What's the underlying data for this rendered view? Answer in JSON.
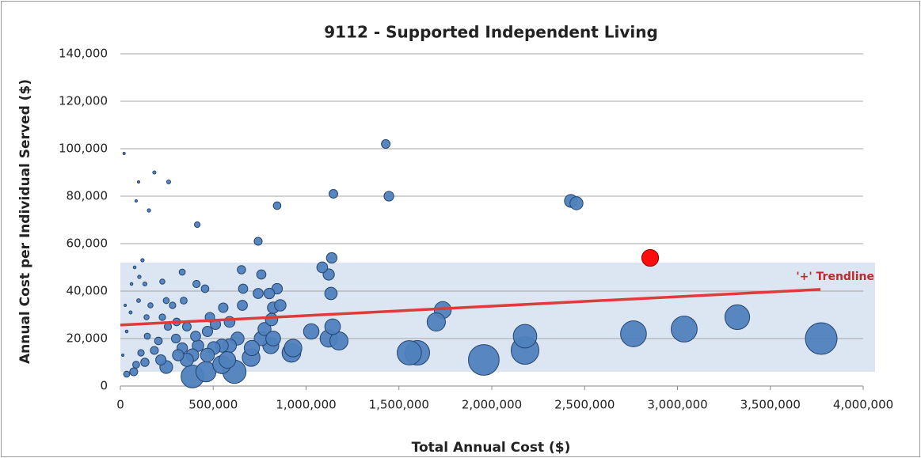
{
  "chart_data": {
    "type": "bubble",
    "title": "9112 - Supported Independent Living",
    "x_label": "Total Annual Cost ($)",
    "y_label": "Annual Cost per Individual Served ($)",
    "xlim": [
      0,
      4000000
    ],
    "ylim": [
      0,
      140000
    ],
    "xticks": [
      0,
      {
        "value": 500000,
        "label": "500,000"
      },
      {
        "value": 1000000,
        "label": "1,000,000"
      },
      {
        "value": 1500000,
        "label": "1,500,000"
      },
      {
        "value": 2000000,
        "label": "2,000,000"
      },
      {
        "value": 2500000,
        "label": "2,500,000"
      },
      {
        "value": 3000000,
        "label": "3,000,000"
      },
      {
        "value": 3500000,
        "label": "3,500,000"
      },
      {
        "value": 4000000,
        "label": "4,000,000"
      }
    ],
    "yticks": [
      0,
      {
        "value": 20000,
        "label": "20,000"
      },
      {
        "value": 40000,
        "label": "40,000"
      },
      {
        "value": 60000,
        "label": "60,000"
      },
      {
        "value": 80000,
        "label": "80,000"
      },
      {
        "value": 100000,
        "label": "100,000"
      },
      {
        "value": 120000,
        "label": "120,000"
      },
      {
        "value": 140000,
        "label": "140,000"
      }
    ],
    "grid": true,
    "band": [
      6000,
      52000
    ],
    "band_color": "#dce6f2",
    "trendline": {
      "label": "'+' Trendline",
      "x": [
        0,
        3770000
      ],
      "y": [
        25700,
        40700
      ],
      "color": "#e03a3a"
    },
    "series": [
      {
        "color": "#4f81bd",
        "x": [
          3774000,
          3322000,
          3036000,
          2763000,
          2179000,
          2179000,
          1957000,
          1599000,
          1556000,
          1736000,
          1701000,
          1122000,
          1177000,
          1143000,
          1134000,
          1122000,
          1138000,
          1087000,
          1028000,
          921000,
          930000,
          810000,
          614000,
          388000,
          461000,
          704000,
          546000,
          759000,
          776000,
          823000,
          814000,
          823000,
          861000,
          844000,
          802000,
          742000,
          759000,
          652000,
          661000,
          657000,
          631000,
          588000,
          546000,
          503000,
          469000,
          512000,
          554000,
          588000,
          469000,
          482000,
          410000,
          456000,
          418000,
          388000,
          358000,
          333000,
          299000,
          303000,
          281000,
          341000,
          405000,
          358000,
          247000,
          218000,
          183000,
          205000,
          145000,
          111000,
          72000,
          34000,
          85000,
          132000,
          141000,
          162000,
          226000,
          333000,
          119000,
          77000,
          60000,
          26000,
          55000,
          98000,
          132000,
          34000,
          13000,
          102000,
          226000,
          247000,
          256000,
          311000,
          576000,
          708000,
          20000,
          183000,
          260000,
          85000,
          154000,
          98000,
          414000,
          844000,
          742000,
          1147000,
          1429000,
          1446000,
          2426000,
          2456000
        ],
        "y": [
          20000,
          29000,
          24000,
          22000,
          15000,
          21000,
          11000,
          14000,
          14000,
          32000,
          27000,
          20000,
          19000,
          25000,
          39000,
          47000,
          54000,
          50000,
          23000,
          14000,
          16000,
          17000,
          6000,
          4000,
          6000,
          12000,
          9000,
          20000,
          24000,
          20000,
          28000,
          33000,
          34000,
          41000,
          39000,
          39000,
          47000,
          49000,
          41000,
          34000,
          20000,
          17000,
          17000,
          16000,
          13000,
          26000,
          33000,
          27000,
          23000,
          29000,
          43000,
          41000,
          17000,
          13000,
          11000,
          16000,
          20000,
          27000,
          34000,
          36000,
          21000,
          25000,
          8000,
          11000,
          15000,
          19000,
          21000,
          14000,
          6000,
          5000,
          9000,
          10000,
          29000,
          34000,
          29000,
          48000,
          53000,
          50000,
          43000,
          34000,
          31000,
          36000,
          43000,
          23000,
          13000,
          46000,
          44000,
          36000,
          25000,
          13000,
          11000,
          16000,
          98000,
          90000,
          86000,
          78000,
          74000,
          86000,
          68000,
          76000,
          61000,
          81000,
          102000,
          80000,
          78000,
          77000
        ],
        "sizes": [
          189,
          115,
          127,
          126,
          145,
          104,
          178,
          114,
          111,
          54,
          63,
          56,
          62,
          46,
          29,
          24,
          21,
          22,
          45,
          66,
          58,
          48,
          102,
          97,
          77,
          59,
          61,
          38,
          32,
          41,
          29,
          25,
          25,
          21,
          21,
          19,
          16,
          13,
          16,
          19,
          32,
          35,
          32,
          31,
          36,
          20,
          17,
          22,
          20,
          17,
          10,
          11,
          25,
          30,
          33,
          21,
          15,
          11,
          8,
          9,
          19,
          14,
          31,
          20,
          12,
          11,
          7,
          8,
          12,
          7,
          9,
          13,
          5,
          5,
          8,
          7,
          2.2,
          1.5,
          1.4,
          0.8,
          1.8,
          2.7,
          3.1,
          1.5,
          1,
          2.2,
          5.1,
          6.9,
          10,
          24,
          52,
          44,
          0.2,
          2,
          3,
          1.1,
          2.1,
          1.1,
          6.1,
          11,
          12,
          14,
          14,
          18,
          31,
          32
        ]
      },
      {
        "color": "#ff0000",
        "x": [
          2853000
        ],
        "y": [
          54000
        ],
        "sizes": [
          53
        ]
      }
    ]
  }
}
